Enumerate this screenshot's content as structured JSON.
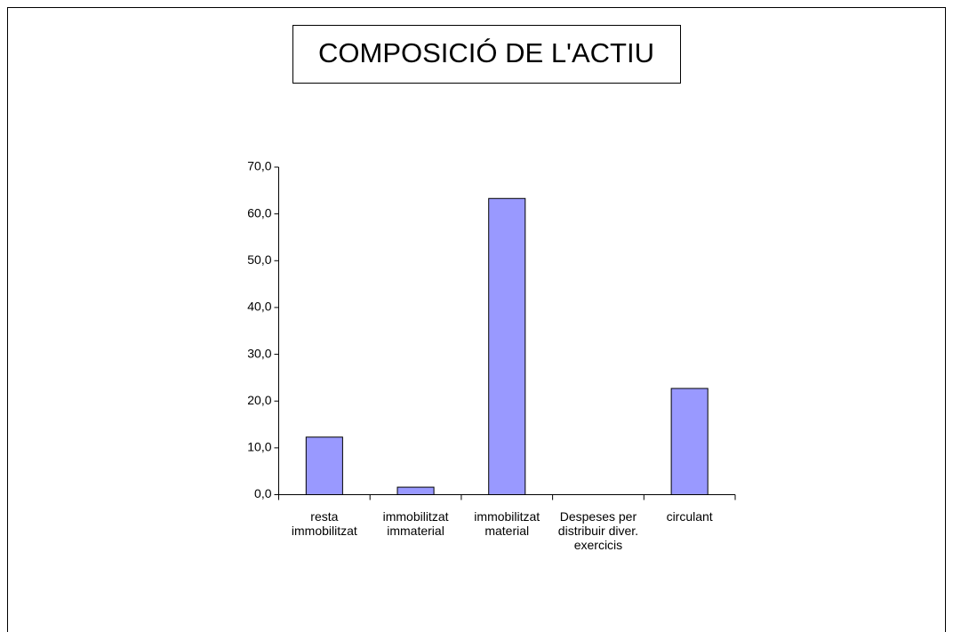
{
  "chart_data": {
    "type": "bar",
    "title": "COMPOSICIÓ DE L'ACTIU",
    "categories": [
      "resta immobilitzat",
      "immobilitzat immaterial",
      "immobilitzat material",
      "Despeses per distribuir diver. exercicis",
      "circulant"
    ],
    "values": [
      12.3,
      1.6,
      63.3,
      0,
      22.7
    ],
    "color": "#9999ff",
    "ylim": [
      0,
      70
    ],
    "yticks": [
      {
        "value": 0,
        "label": "0,0"
      },
      {
        "value": 10,
        "label": "10,0"
      },
      {
        "value": 20,
        "label": "20,0"
      },
      {
        "value": 30,
        "label": "30,0"
      },
      {
        "value": 40,
        "label": "40,0"
      },
      {
        "value": 50,
        "label": "50,0"
      },
      {
        "value": 60,
        "label": "60,0"
      },
      {
        "value": 70,
        "label": "70,0"
      }
    ],
    "grid": false
  }
}
